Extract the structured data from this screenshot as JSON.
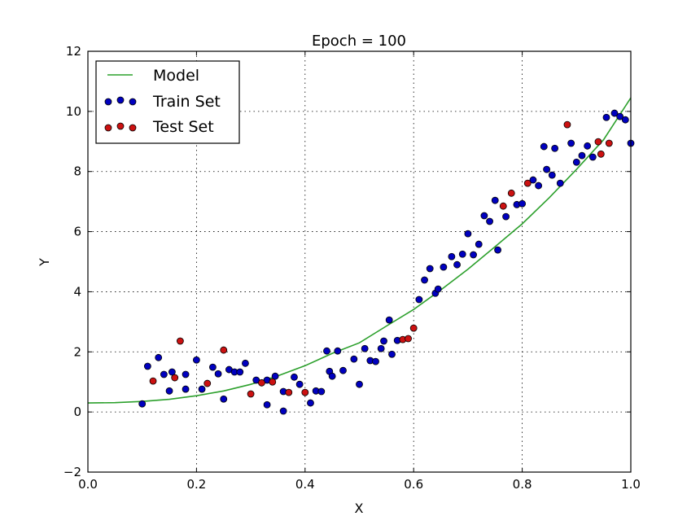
{
  "chart_data": {
    "type": "scatter",
    "title": "Epoch = 100",
    "xlabel": "X",
    "ylabel": "Y",
    "xlim": [
      0.0,
      1.0
    ],
    "ylim": [
      -2,
      12
    ],
    "xticks": [
      0.0,
      0.2,
      0.4,
      0.6,
      0.8,
      1.0
    ],
    "xtick_labels": [
      "0.0",
      "0.2",
      "0.4",
      "0.6",
      "0.8",
      "1.0"
    ],
    "yticks": [
      -2,
      0,
      2,
      4,
      6,
      8,
      10,
      12
    ],
    "ytick_labels": [
      "−2",
      "0",
      "2",
      "4",
      "6",
      "8",
      "10",
      "12"
    ],
    "grid": true,
    "legend_position": "upper left",
    "legend": [
      {
        "label": "Model",
        "kind": "line",
        "color": "#2ca02c"
      },
      {
        "label": "Train Set",
        "kind": "markers",
        "color": "#0000bf"
      },
      {
        "label": "Test Set",
        "kind": "markers",
        "color": "#cc1111"
      }
    ],
    "series": [
      {
        "name": "Model",
        "kind": "line",
        "color": "#2ca02c",
        "x": [
          0.0,
          0.05,
          0.1,
          0.15,
          0.2,
          0.25,
          0.3,
          0.35,
          0.4,
          0.45,
          0.5,
          0.55,
          0.6,
          0.65,
          0.7,
          0.75,
          0.8,
          0.85,
          0.9,
          0.95,
          1.0
        ],
        "y": [
          0.3,
          0.31,
          0.35,
          0.42,
          0.54,
          0.7,
          0.92,
          1.2,
          1.54,
          1.95,
          2.3,
          2.86,
          3.41,
          4.06,
          4.75,
          5.5,
          6.26,
          7.13,
          8.07,
          9.06,
          10.45
        ]
      },
      {
        "name": "Train Set",
        "kind": "scatter",
        "color": "#0000bf",
        "x": [
          0.1,
          0.11,
          0.13,
          0.14,
          0.15,
          0.155,
          0.18,
          0.18,
          0.2,
          0.21,
          0.23,
          0.24,
          0.25,
          0.26,
          0.27,
          0.28,
          0.29,
          0.31,
          0.33,
          0.33,
          0.345,
          0.36,
          0.36,
          0.38,
          0.39,
          0.41,
          0.42,
          0.43,
          0.44,
          0.445,
          0.45,
          0.46,
          0.47,
          0.49,
          0.5,
          0.51,
          0.52,
          0.53,
          0.54,
          0.545,
          0.555,
          0.56,
          0.57,
          0.61,
          0.62,
          0.63,
          0.64,
          0.645,
          0.655,
          0.67,
          0.68,
          0.69,
          0.7,
          0.71,
          0.72,
          0.73,
          0.74,
          0.75,
          0.755,
          0.77,
          0.79,
          0.8,
          0.82,
          0.83,
          0.84,
          0.845,
          0.855,
          0.86,
          0.87,
          0.89,
          0.9,
          0.91,
          0.92,
          0.93,
          0.955,
          0.97,
          0.98,
          0.99,
          1.0
        ],
        "y": [
          0.27,
          1.52,
          1.81,
          1.25,
          0.7,
          1.33,
          1.25,
          0.76,
          1.73,
          0.76,
          1.49,
          1.27,
          0.43,
          1.41,
          1.33,
          1.33,
          1.62,
          1.06,
          1.06,
          0.24,
          1.19,
          0.03,
          0.68,
          1.16,
          0.92,
          0.3,
          0.7,
          0.68,
          2.03,
          1.35,
          1.19,
          2.03,
          1.38,
          1.76,
          0.92,
          2.11,
          1.71,
          1.68,
          2.11,
          2.36,
          3.06,
          1.92,
          2.38,
          3.74,
          4.39,
          4.77,
          3.95,
          4.09,
          4.82,
          5.17,
          4.9,
          5.25,
          5.93,
          5.23,
          5.58,
          6.53,
          6.34,
          7.04,
          5.39,
          6.5,
          6.9,
          6.93,
          7.72,
          7.53,
          8.83,
          8.07,
          7.88,
          8.77,
          7.61,
          8.94,
          8.31,
          8.53,
          8.85,
          8.48,
          9.8,
          9.94,
          9.83,
          9.72,
          8.94
        ]
      },
      {
        "name": "Test Set",
        "kind": "scatter",
        "color": "#cc1111",
        "x": [
          0.12,
          0.16,
          0.17,
          0.22,
          0.25,
          0.3,
          0.32,
          0.34,
          0.37,
          0.4,
          0.58,
          0.59,
          0.6,
          0.765,
          0.78,
          0.81,
          0.883,
          0.94,
          0.945,
          0.96
        ],
        "y": [
          1.03,
          1.14,
          2.36,
          0.95,
          2.06,
          0.6,
          0.97,
          1.0,
          0.65,
          0.65,
          2.41,
          2.44,
          2.79,
          6.85,
          7.28,
          7.61,
          9.56,
          8.99,
          8.58,
          8.94
        ]
      }
    ]
  }
}
